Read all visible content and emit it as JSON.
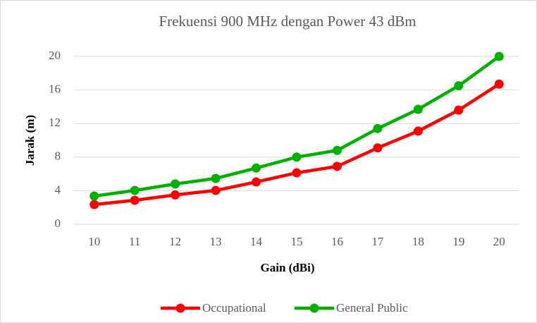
{
  "chart_data": {
    "type": "line",
    "title": "Frekuensi 900 MHz dengan Power 43 dBm",
    "x_label": "Gain (dBi)",
    "y_label": "Jarak (m)",
    "categories": [
      "10",
      "11",
      "12",
      "13",
      "14",
      "15",
      "16",
      "17",
      "18",
      "19",
      "20"
    ],
    "series": [
      {
        "name": "Occupational",
        "color": "#ff0000",
        "values": [
          2.35,
          2.86,
          3.5,
          4.03,
          5.04,
          6.13,
          6.9,
          9.1,
          11.1,
          13.6,
          16.7
        ]
      },
      {
        "name": "General Public",
        "color": "#00b000",
        "values": [
          3.36,
          4.03,
          4.8,
          5.46,
          6.7,
          8.0,
          8.8,
          11.4,
          13.7,
          16.5,
          20.0
        ]
      }
    ],
    "ylim": [
      0,
      20
    ],
    "yticks": [
      0,
      4,
      8,
      12,
      16,
      20
    ],
    "grid": true,
    "legend": "bottom"
  }
}
